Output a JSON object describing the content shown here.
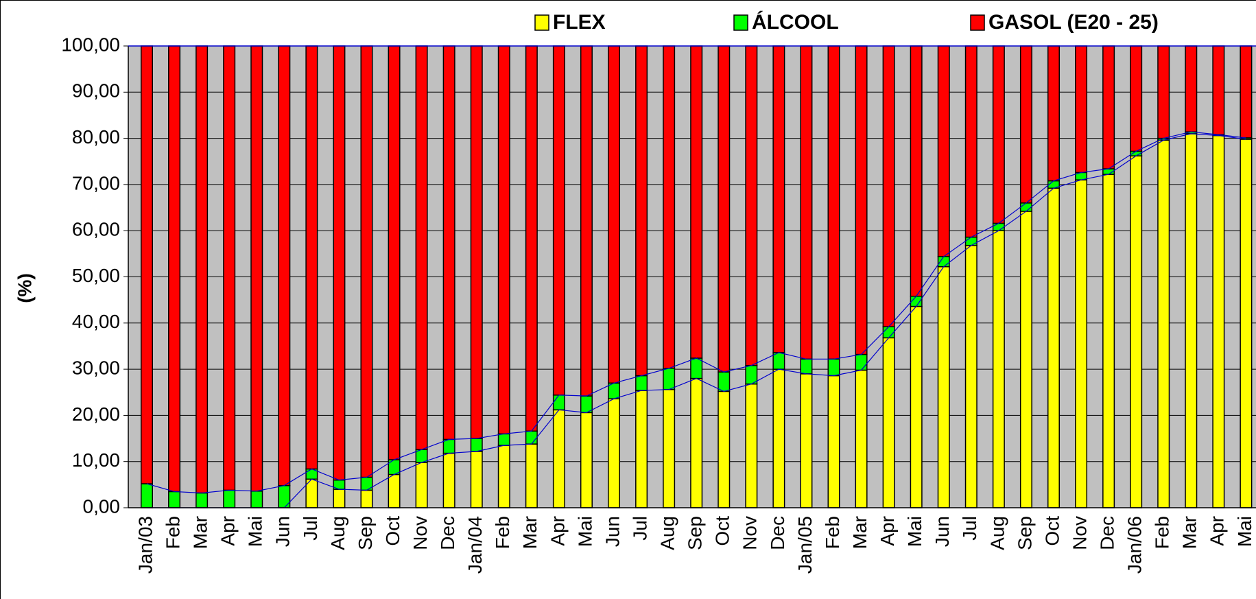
{
  "chart_data": {
    "type": "stacked_bar",
    "y_label": "(%)",
    "categories": [
      "Jan/03",
      "Feb",
      "Mar",
      "Apr",
      "Mai",
      "Jun",
      "Jul",
      "Aug",
      "Sep",
      "Oct",
      "Nov",
      "Dec",
      "Jan/04",
      "Feb",
      "Mar",
      "Apr",
      "Mai",
      "Jun",
      "Jul",
      "Aug",
      "Sep",
      "Oct",
      "Nov",
      "Dec",
      "Jan/05",
      "Feb",
      "Mar",
      "Apr",
      "Mai",
      "Jun",
      "Jul",
      "Aug",
      "Sep",
      "Oct",
      "Nov",
      "Dec",
      "Jan/06",
      "Feb",
      "Mar",
      "Apr",
      "Mai"
    ],
    "series": [
      {
        "name": "FLEX",
        "color": "#ffff00",
        "values": [
          0,
          0,
          0,
          0,
          0,
          0,
          6.2,
          4.0,
          3.8,
          7.2,
          9.8,
          11.8,
          12.2,
          13.5,
          13.8,
          21.2,
          20.6,
          23.6,
          25.4,
          25.6,
          28.0,
          25.2,
          26.8,
          30.0,
          29.0,
          28.6,
          29.8,
          36.8,
          43.6,
          52.2,
          56.8,
          60.0,
          64.2,
          69.2,
          71.0,
          72.2,
          76.2,
          79.6,
          81.0,
          80.6,
          79.8
        ]
      },
      {
        "name": "ÁLCOOL",
        "color": "#00ff00",
        "values": [
          5.2,
          3.5,
          3.2,
          3.8,
          3.6,
          4.8,
          2.2,
          2.0,
          2.8,
          3.2,
          2.8,
          3.0,
          2.8,
          2.5,
          2.8,
          3.2,
          3.6,
          3.4,
          3.2,
          4.6,
          4.4,
          4.2,
          4.0,
          3.6,
          3.2,
          3.6,
          3.4,
          2.4,
          2.2,
          2.2,
          1.8,
          1.6,
          1.8,
          1.6,
          1.6,
          1.2,
          1.0,
          0.4,
          0.4,
          0.2,
          0.3
        ]
      },
      {
        "name": "GASOL (E20 - 25)",
        "color": "#ff0000",
        "values": [
          94.8,
          96.5,
          96.8,
          96.2,
          96.4,
          95.2,
          91.6,
          94.0,
          93.4,
          89.6,
          87.4,
          85.2,
          85.0,
          84.0,
          83.4,
          75.6,
          75.8,
          73.0,
          71.4,
          69.8,
          67.6,
          70.6,
          69.2,
          66.4,
          67.8,
          67.8,
          66.8,
          60.8,
          54.2,
          45.6,
          41.4,
          38.4,
          34.0,
          29.2,
          27.4,
          26.6,
          22.8,
          20.0,
          18.6,
          19.2,
          19.9
        ]
      }
    ],
    "ylim": [
      0,
      100
    ],
    "yticks": [
      {
        "value": 0,
        "label": "0,00"
      },
      {
        "value": 10,
        "label": "10,00"
      },
      {
        "value": 20,
        "label": "20,00"
      },
      {
        "value": 30,
        "label": "30,00"
      },
      {
        "value": 40,
        "label": "40,00"
      },
      {
        "value": 50,
        "label": "50,00"
      },
      {
        "value": 60,
        "label": "60,00"
      },
      {
        "value": 70,
        "label": "70,00"
      },
      {
        "value": 80,
        "label": "80,00"
      },
      {
        "value": 90,
        "label": "90,00"
      },
      {
        "value": 100,
        "label": "100,00"
      }
    ],
    "grid": true,
    "line_color": "#0000cc",
    "plot_background": "#c0c0c0"
  }
}
